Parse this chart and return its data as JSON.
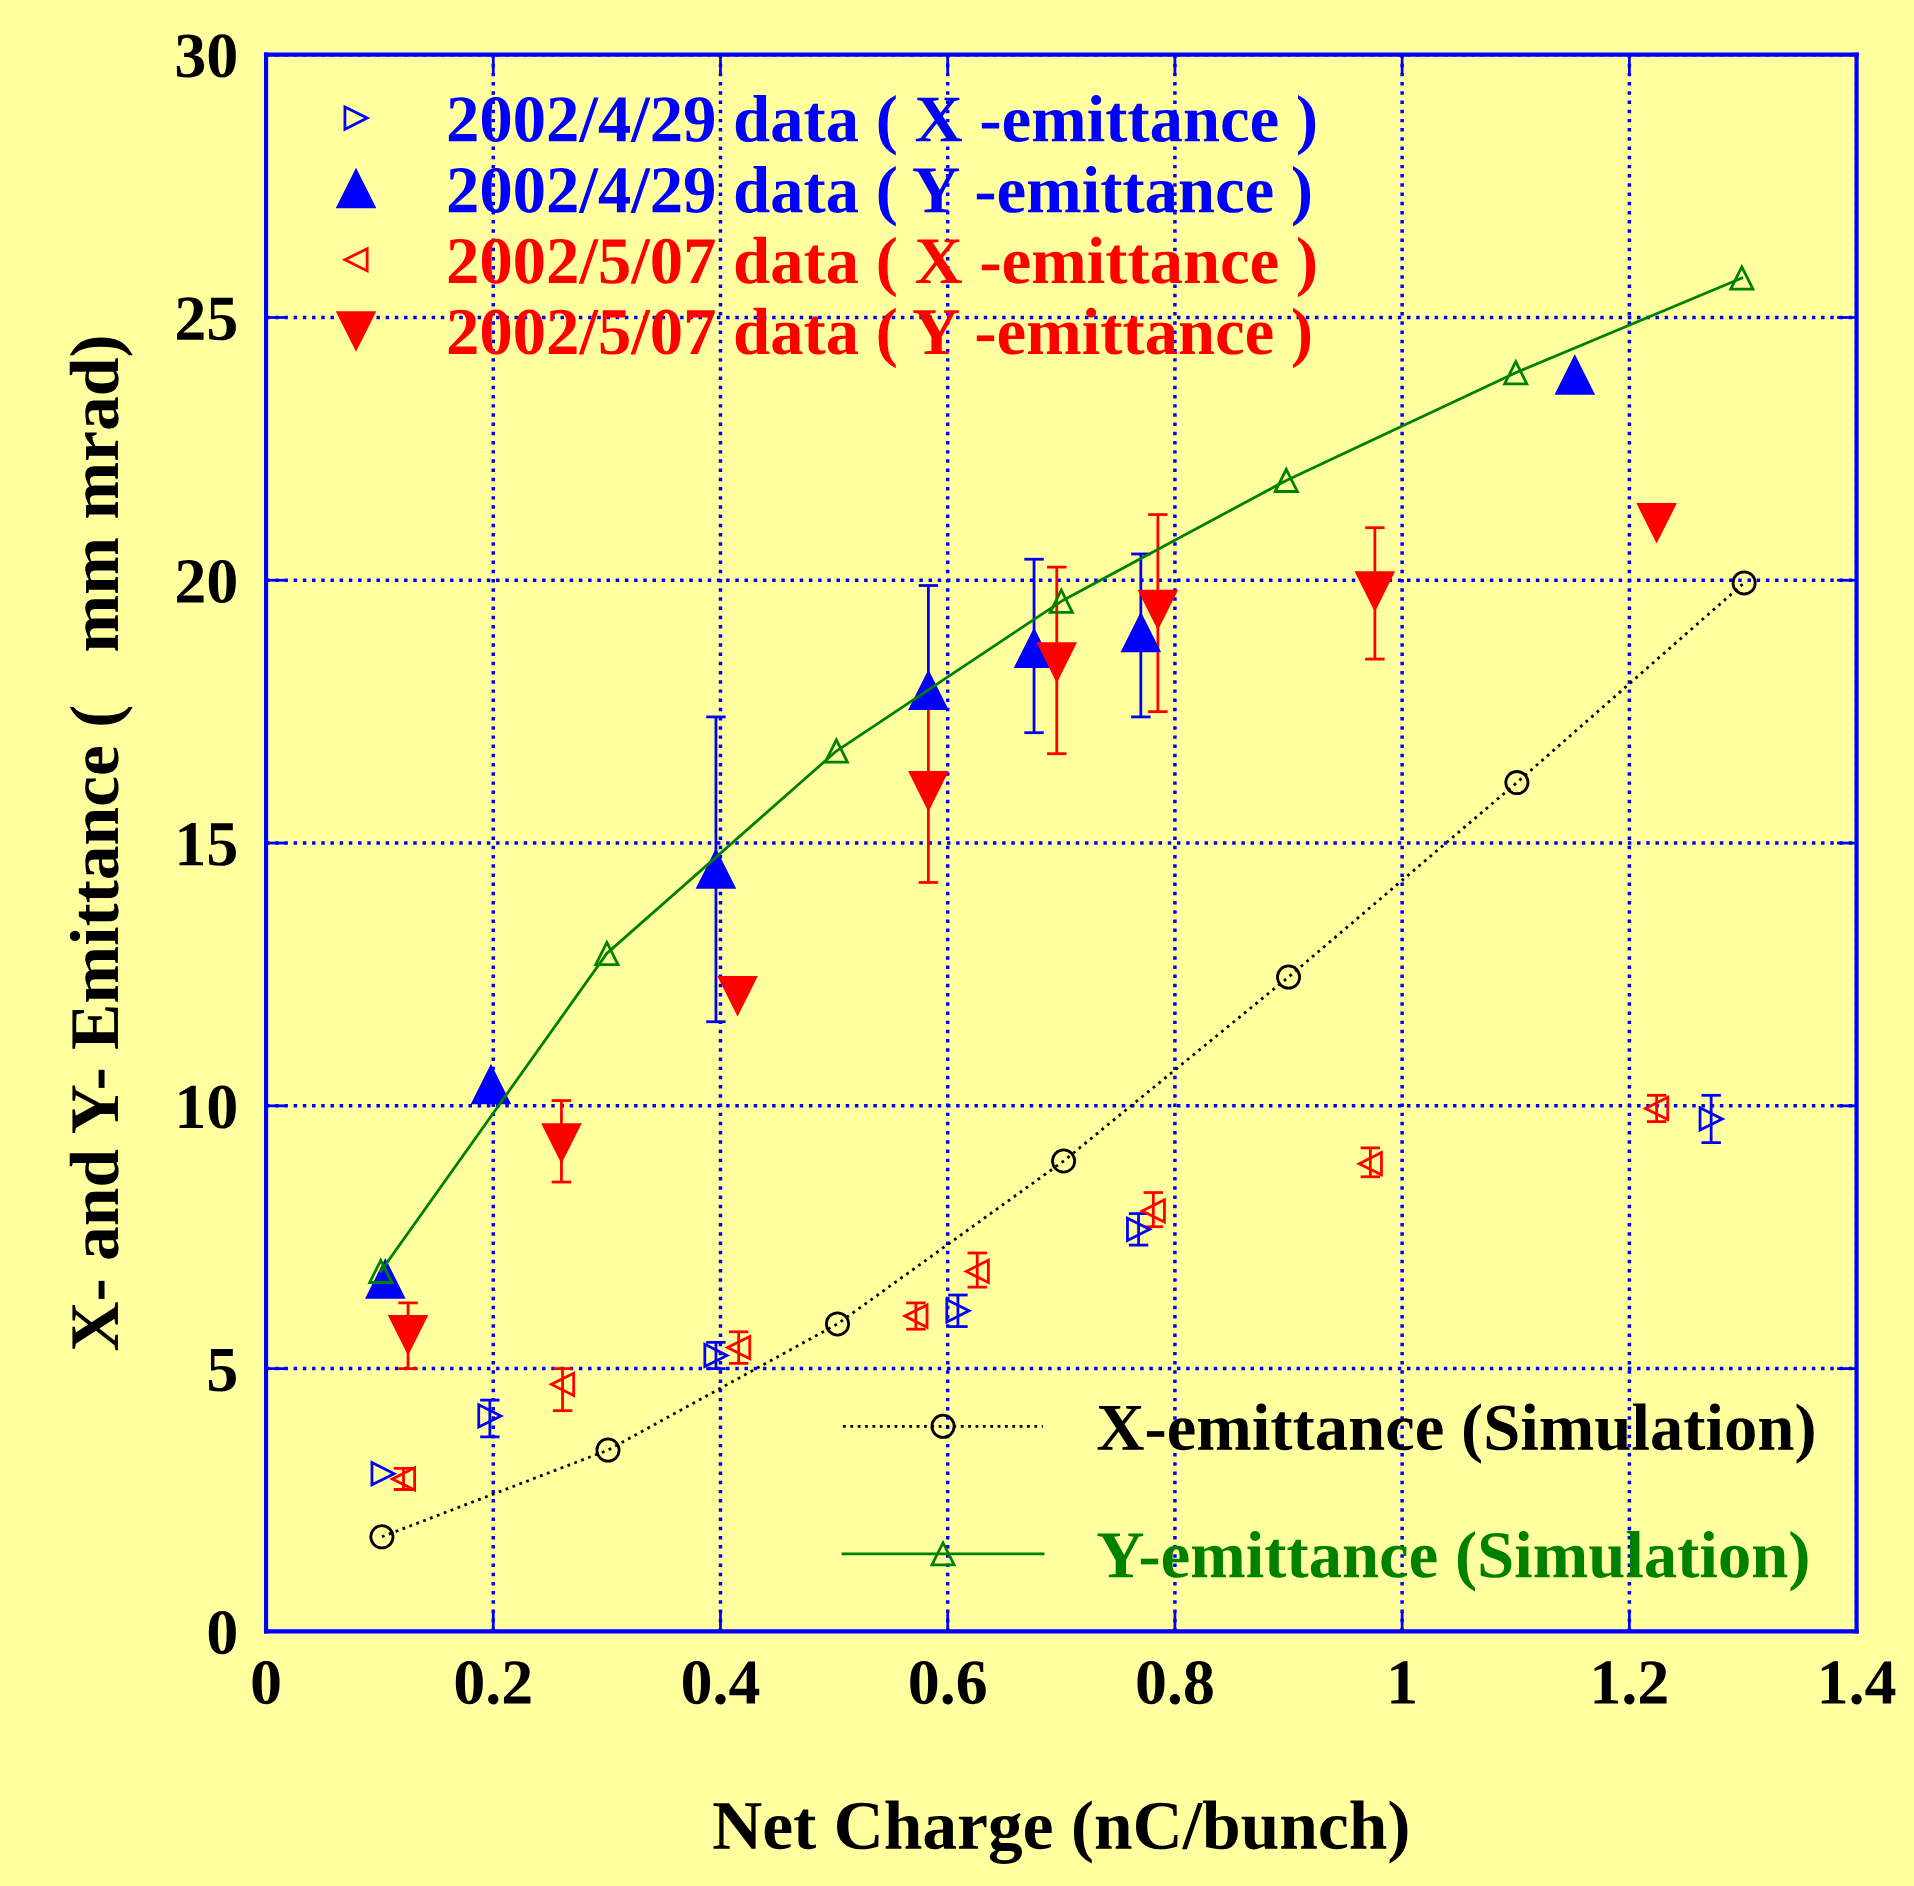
{
  "chart_data": {
    "type": "scatter",
    "xlabel": "Net Charge (nC/bunch)",
    "ylabel": "X- and Y- Emittance (   mm mrad)",
    "xlim": [
      0,
      1.4
    ],
    "xticks": [
      0,
      0.2,
      0.4,
      0.6,
      0.8,
      1,
      1.2,
      1.4
    ],
    "ylim": [
      0,
      30
    ],
    "yticks": [
      0,
      5,
      10,
      15,
      20,
      25,
      30
    ],
    "grid": true,
    "legend": [
      "top left",
      "bottom right"
    ],
    "series": [
      {
        "name": "2002/4/29 data ( X -emittance )",
        "color": "#0000ff",
        "marker": "triangle-right-open",
        "x": [
          0.103,
          0.197,
          0.396,
          0.609,
          0.768,
          1.272
        ],
        "values": [
          3.0,
          4.1,
          5.25,
          6.1,
          7.65,
          9.75
        ],
        "errors": [
          null,
          [
            3.7,
            4.4
          ],
          [
            5.0,
            5.5
          ],
          [
            5.8,
            6.4
          ],
          [
            7.35,
            7.95
          ],
          [
            9.3,
            10.2
          ]
        ]
      },
      {
        "name": "2002/4/29 data ( Y -emittance )",
        "color": "#0000ff",
        "marker": "triangle-up",
        "x": [
          0.105,
          0.198,
          0.396,
          0.583,
          0.676,
          0.77,
          1.152
        ],
        "values": [
          6.7,
          10.4,
          14.5,
          17.9,
          18.7,
          19.0,
          23.9
        ],
        "errors": [
          null,
          null,
          [
            11.6,
            17.4
          ],
          [
            17.9,
            19.9
          ],
          [
            17.1,
            20.4
          ],
          [
            17.4,
            20.5
          ],
          null
        ]
      },
      {
        "name": "2002/5/07 data ( X -emittance )",
        "color": "#ff0000",
        "marker": "triangle-left-open",
        "x": [
          0.121,
          0.261,
          0.416,
          0.572,
          0.626,
          0.781,
          0.972,
          1.224
        ],
        "values": [
          2.9,
          4.7,
          5.4,
          6.0,
          6.85,
          8.0,
          8.9,
          9.95
        ],
        "errors": [
          [
            2.7,
            3.1
          ],
          [
            4.2,
            5.0
          ],
          [
            5.1,
            5.7
          ],
          [
            5.75,
            6.25
          ],
          [
            6.55,
            7.2
          ],
          [
            7.7,
            8.35
          ],
          [
            8.65,
            9.2
          ],
          [
            9.7,
            10.2
          ]
        ]
      },
      {
        "name": "2002/5/07 data ( Y -emittance )",
        "color": "#ff0000",
        "marker": "triangle-down",
        "x": [
          0.125,
          0.26,
          0.415,
          0.583,
          0.696,
          0.785,
          0.976,
          1.224
        ],
        "values": [
          5.65,
          9.3,
          12.1,
          16.0,
          18.45,
          19.45,
          19.8,
          21.1
        ],
        "errors": [
          [
            5.0,
            6.25
          ],
          [
            8.55,
            10.1
          ],
          null,
          [
            14.25,
            17.8
          ],
          [
            16.7,
            20.25
          ],
          [
            17.5,
            21.25
          ],
          [
            18.5,
            21.0
          ],
          null
        ]
      },
      {
        "name": "X-emittance (Simulation)",
        "type": "line",
        "color": "#000000",
        "marker": "circle-open",
        "line_style": "dotted",
        "x": [
          0.102,
          0.301,
          0.503,
          0.702,
          0.9,
          1.101,
          1.301
        ],
        "values": [
          1.8,
          3.45,
          5.85,
          8.95,
          12.45,
          16.15,
          19.95
        ]
      },
      {
        "name": "Y-emittance (Simulation)",
        "type": "line",
        "color": "#008000",
        "marker": "triangle-up-open",
        "line_style": "solid",
        "x": [
          0.101,
          0.3,
          0.502,
          0.7,
          0.898,
          1.1,
          1.299
        ],
        "values": [
          6.85,
          12.9,
          16.75,
          19.6,
          21.9,
          23.95,
          25.75
        ]
      }
    ]
  }
}
